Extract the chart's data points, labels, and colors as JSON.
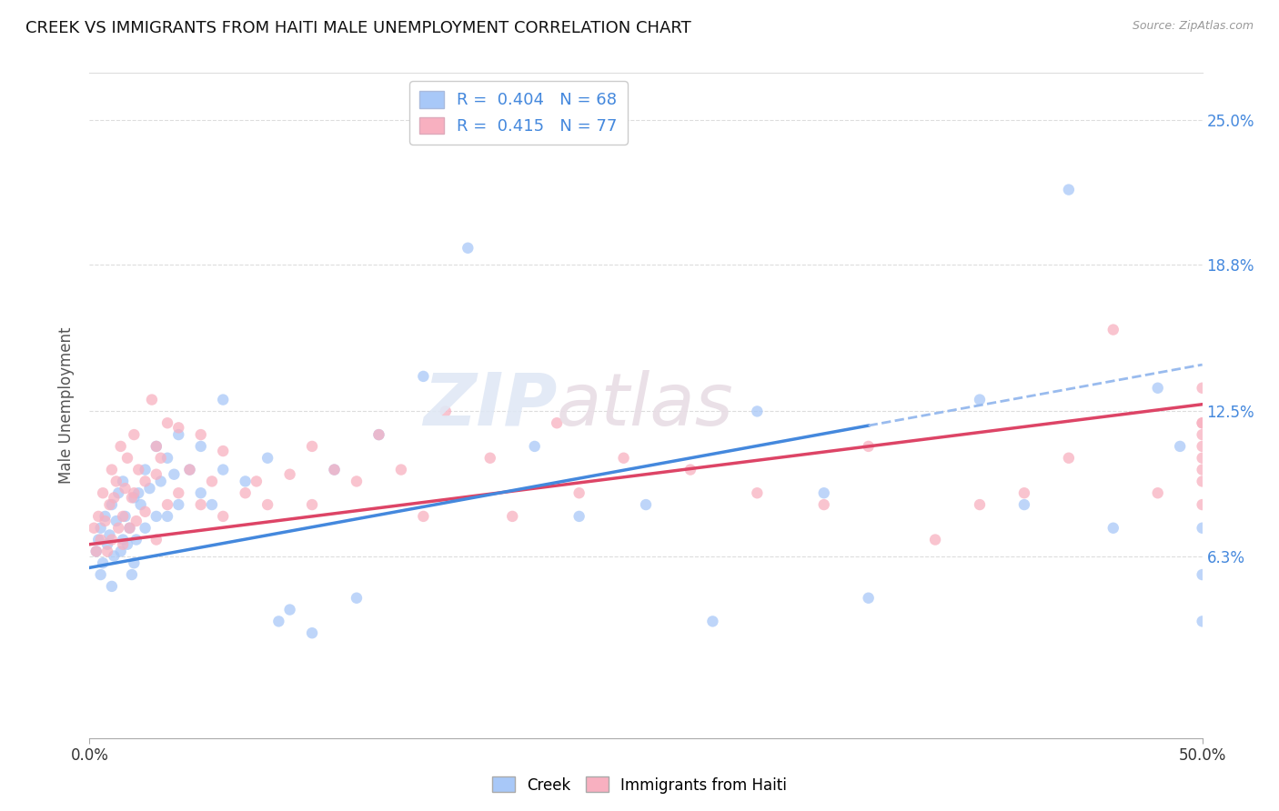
{
  "title": "CREEK VS IMMIGRANTS FROM HAITI MALE UNEMPLOYMENT CORRELATION CHART",
  "source": "Source: ZipAtlas.com",
  "ylabel": "Male Unemployment",
  "ytick_labels": [
    "6.3%",
    "12.5%",
    "18.8%",
    "25.0%"
  ],
  "ytick_values": [
    6.3,
    12.5,
    18.8,
    25.0
  ],
  "xlim": [
    0,
    50
  ],
  "ylim": [
    -1.5,
    27
  ],
  "creek_R": 0.404,
  "creek_N": 68,
  "haiti_R": 0.415,
  "haiti_N": 77,
  "blue_color": "#a8c8f8",
  "pink_color": "#f8b0c0",
  "blue_line_color": "#4488dd",
  "pink_line_color": "#dd4466",
  "blue_dash_color": "#99bbee",
  "creek_line_x0": 0,
  "creek_line_y0": 5.8,
  "creek_line_x1": 50,
  "creek_line_y1": 14.5,
  "creek_solid_end": 35,
  "haiti_line_x0": 0,
  "haiti_line_y0": 6.8,
  "haiti_line_x1": 50,
  "haiti_line_y1": 12.8,
  "creek_x": [
    0.3,
    0.4,
    0.5,
    0.5,
    0.6,
    0.7,
    0.8,
    0.9,
    1.0,
    1.0,
    1.1,
    1.2,
    1.3,
    1.4,
    1.5,
    1.5,
    1.6,
    1.7,
    1.8,
    1.9,
    2.0,
    2.0,
    2.1,
    2.2,
    2.3,
    2.5,
    2.5,
    2.7,
    3.0,
    3.0,
    3.2,
    3.5,
    3.5,
    3.8,
    4.0,
    4.0,
    4.5,
    5.0,
    5.0,
    5.5,
    6.0,
    6.0,
    7.0,
    8.0,
    8.5,
    9.0,
    10.0,
    11.0,
    12.0,
    13.0,
    15.0,
    17.0,
    20.0,
    22.0,
    25.0,
    28.0,
    30.0,
    33.0,
    35.0,
    40.0,
    42.0,
    44.0,
    46.0,
    48.0,
    49.0,
    50.0,
    50.0,
    50.0
  ],
  "creek_y": [
    6.5,
    7.0,
    5.5,
    7.5,
    6.0,
    8.0,
    6.8,
    7.2,
    5.0,
    8.5,
    6.3,
    7.8,
    9.0,
    6.5,
    7.0,
    9.5,
    8.0,
    6.8,
    7.5,
    5.5,
    6.0,
    8.8,
    7.0,
    9.0,
    8.5,
    7.5,
    10.0,
    9.2,
    8.0,
    11.0,
    9.5,
    10.5,
    8.0,
    9.8,
    11.5,
    8.5,
    10.0,
    9.0,
    11.0,
    8.5,
    10.0,
    13.0,
    9.5,
    10.5,
    3.5,
    4.0,
    3.0,
    10.0,
    4.5,
    11.5,
    14.0,
    19.5,
    11.0,
    8.0,
    8.5,
    3.5,
    12.5,
    9.0,
    4.5,
    13.0,
    8.5,
    22.0,
    7.5,
    13.5,
    11.0,
    3.5,
    5.5,
    7.5
  ],
  "haiti_x": [
    0.2,
    0.3,
    0.4,
    0.5,
    0.6,
    0.7,
    0.8,
    0.9,
    1.0,
    1.0,
    1.1,
    1.2,
    1.3,
    1.4,
    1.5,
    1.5,
    1.6,
    1.7,
    1.8,
    1.9,
    2.0,
    2.0,
    2.1,
    2.2,
    2.5,
    2.5,
    2.8,
    3.0,
    3.0,
    3.0,
    3.2,
    3.5,
    3.5,
    4.0,
    4.0,
    4.5,
    5.0,
    5.0,
    5.5,
    6.0,
    6.0,
    7.0,
    7.5,
    8.0,
    9.0,
    10.0,
    10.0,
    11.0,
    12.0,
    13.0,
    14.0,
    15.0,
    16.0,
    18.0,
    19.0,
    21.0,
    22.0,
    24.0,
    27.0,
    30.0,
    33.0,
    35.0,
    38.0,
    40.0,
    42.0,
    44.0,
    46.0,
    48.0,
    50.0,
    50.0,
    50.0,
    50.0,
    50.0,
    50.0,
    50.0,
    50.0,
    50.0
  ],
  "haiti_y": [
    7.5,
    6.5,
    8.0,
    7.0,
    9.0,
    7.8,
    6.5,
    8.5,
    7.0,
    10.0,
    8.8,
    9.5,
    7.5,
    11.0,
    8.0,
    6.8,
    9.2,
    10.5,
    7.5,
    8.8,
    9.0,
    11.5,
    7.8,
    10.0,
    9.5,
    8.2,
    13.0,
    7.0,
    9.8,
    11.0,
    10.5,
    8.5,
    12.0,
    9.0,
    11.8,
    10.0,
    8.5,
    11.5,
    9.5,
    8.0,
    10.8,
    9.0,
    9.5,
    8.5,
    9.8,
    11.0,
    8.5,
    10.0,
    9.5,
    11.5,
    10.0,
    8.0,
    12.5,
    10.5,
    8.0,
    12.0,
    9.0,
    10.5,
    10.0,
    9.0,
    8.5,
    11.0,
    7.0,
    8.5,
    9.0,
    10.5,
    16.0,
    9.0,
    12.0,
    13.5,
    10.5,
    12.0,
    11.0,
    9.5,
    10.0,
    8.5,
    11.5
  ]
}
